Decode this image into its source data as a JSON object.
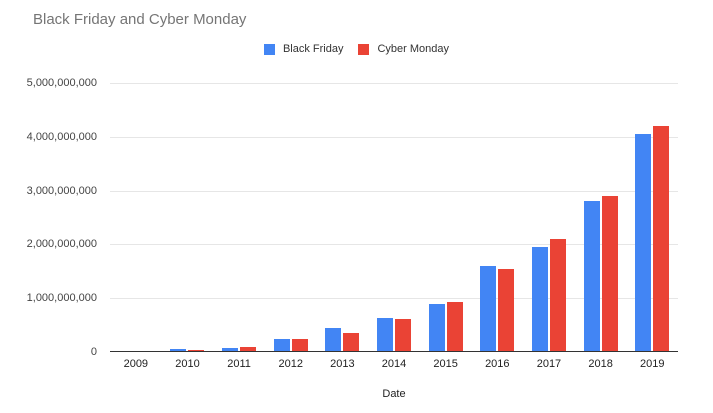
{
  "chart_data": {
    "type": "bar",
    "title": "Black Friday and Cyber Monday",
    "xlabel": "Date",
    "ylabel": "",
    "categories": [
      "2009",
      "2010",
      "2011",
      "2012",
      "2013",
      "2014",
      "2015",
      "2016",
      "2017",
      "2018",
      "2019"
    ],
    "series": [
      {
        "name": "Black Friday",
        "color": "#4285F4",
        "values": [
          0,
          55000000,
          80000000,
          240000000,
          450000000,
          640000000,
          900000000,
          1600000000,
          1950000000,
          2800000000,
          4050000000
        ]
      },
      {
        "name": "Cyber Monday",
        "color": "#EA4335",
        "values": [
          0,
          45000000,
          100000000,
          235000000,
          350000000,
          620000000,
          925000000,
          1550000000,
          2100000000,
          2900000000,
          4200000000
        ]
      }
    ],
    "ylim": [
      0,
      5000000000
    ],
    "yticks": [
      0,
      1000000000,
      2000000000,
      3000000000,
      4000000000,
      5000000000
    ],
    "ytick_labels": [
      "0",
      "1,000,000,000",
      "2,000,000,000",
      "3,000,000,000",
      "4,000,000,000",
      "5,000,000,000"
    ],
    "grid": true,
    "legend_position": "top-center",
    "colors": {
      "title_text": "#757575",
      "gridline": "#e6e6e6",
      "axis_line": "#333333",
      "tick_text": "#444444"
    }
  }
}
